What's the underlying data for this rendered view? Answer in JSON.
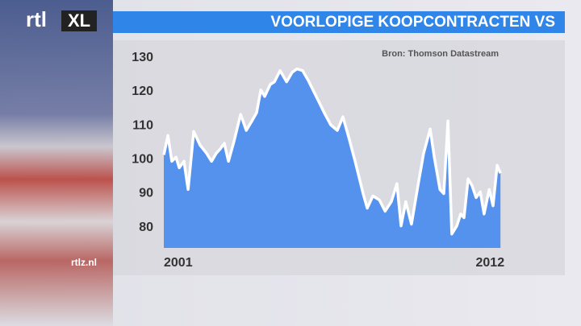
{
  "logo": {
    "left": "rtl",
    "right": "XL"
  },
  "site": "rtlz.nl",
  "chart_data": {
    "type": "area",
    "title": "VOORLOPIGE KOOPCONTRACTEN VS",
    "source": "Bron: Thomson Datastream",
    "color": "#5592ee",
    "line_color": "#ffffff",
    "x": [
      2001.0,
      2001.14,
      2001.27,
      2001.41,
      2001.52,
      2001.68,
      2001.82,
      2002.01,
      2002.22,
      2002.44,
      2002.61,
      2002.77,
      2002.9,
      2003.04,
      2003.18,
      2003.37,
      2003.59,
      2003.78,
      2003.97,
      2004.13,
      2004.27,
      2004.4,
      2004.59,
      2004.73,
      2004.92,
      2005.14,
      2005.33,
      2005.49,
      2005.68,
      2005.87,
      2006.14,
      2006.41,
      2006.63,
      2006.85,
      2007.04,
      2007.23,
      2007.45,
      2007.72,
      2007.86,
      2008.05,
      2008.27,
      2008.46,
      2008.67,
      2008.86,
      2009.0,
      2009.16,
      2009.35,
      2009.57,
      2009.76,
      2009.98,
      2010.12,
      2010.31,
      2010.44,
      2010.58,
      2010.71,
      2010.88,
      2011.01,
      2011.12,
      2011.26,
      2011.39,
      2011.53,
      2011.67,
      2011.8,
      2011.97,
      2012.1,
      2012.24,
      2012.35
    ],
    "values": [
      101.4,
      107.1,
      99.5,
      100.7,
      97.6,
      99.5,
      91.2,
      108.3,
      104.3,
      101.9,
      99.5,
      101.9,
      103.1,
      104.8,
      99.5,
      105.5,
      113.3,
      108.6,
      111.4,
      113.8,
      120.5,
      118.6,
      122.1,
      122.9,
      126.2,
      122.9,
      125.7,
      126.7,
      126.2,
      123.3,
      118.6,
      113.8,
      110.2,
      108.6,
      112.6,
      106.7,
      99.5,
      90.0,
      85.7,
      89.3,
      88.1,
      84.8,
      87.6,
      92.9,
      80.5,
      87.6,
      81.0,
      92.4,
      101.9,
      109.0,
      100.7,
      91.2,
      90.0,
      111.4,
      78.1,
      80.5,
      84.0,
      82.9,
      94.3,
      92.4,
      88.8,
      90.5,
      84.0,
      91.2,
      86.4,
      98.3,
      96.0
    ],
    "xlim": [
      2001,
      2012.4
    ],
    "xticks": [
      2001,
      2012
    ],
    "ylim": [
      74,
      133
    ],
    "yticks": [
      80,
      90,
      100,
      110,
      120,
      130
    ]
  }
}
